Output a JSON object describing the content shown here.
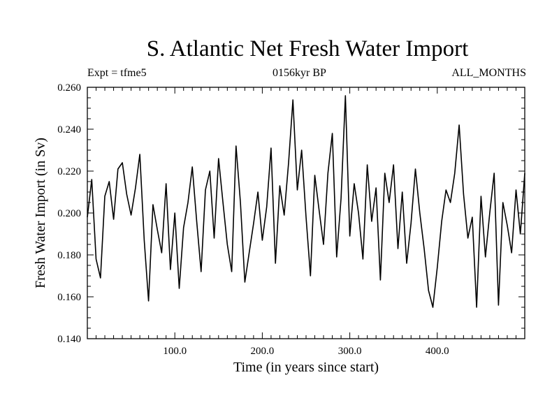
{
  "chart_data": {
    "type": "line",
    "title": "S. Atlantic Net Fresh Water Import",
    "experiment_label": "Expt = tfme5",
    "period_label": "0156kyr BP",
    "months_label": "ALL_MONTHS",
    "xlabel": "Time (in years since start)",
    "ylabel": "Fresh Water Import (in Sv)",
    "xlim": [
      0,
      500
    ],
    "ylim": [
      0.14,
      0.26
    ],
    "xticks": [
      "100.0",
      "200.0",
      "300.0",
      "400.0"
    ],
    "yticks": [
      "0.140",
      "0.160",
      "0.180",
      "0.200",
      "0.220",
      "0.240",
      "0.260"
    ],
    "grid": false,
    "series": [
      {
        "color": "#000000",
        "x": [
          0,
          5,
          10,
          15,
          20,
          25,
          30,
          35,
          40,
          45,
          50,
          55,
          60,
          65,
          70,
          75,
          80,
          85,
          90,
          95,
          100,
          105,
          110,
          115,
          120,
          125,
          130,
          135,
          140,
          145,
          150,
          155,
          160,
          165,
          170,
          175,
          180,
          185,
          190,
          195,
          200,
          205,
          210,
          215,
          220,
          225,
          230,
          235,
          240,
          245,
          250,
          255,
          260,
          265,
          270,
          275,
          280,
          285,
          290,
          295,
          300,
          305,
          310,
          315,
          320,
          325,
          330,
          335,
          340,
          345,
          350,
          355,
          360,
          365,
          370,
          375,
          380,
          385,
          390,
          395,
          400,
          405,
          410,
          415,
          420,
          425,
          430,
          435,
          440,
          445,
          450,
          455,
          460,
          465,
          470,
          475,
          480,
          485,
          490,
          495,
          500
        ],
        "y": [
          0.198,
          0.216,
          0.178,
          0.169,
          0.208,
          0.215,
          0.197,
          0.221,
          0.224,
          0.209,
          0.199,
          0.212,
          0.228,
          0.187,
          0.158,
          0.204,
          0.192,
          0.181,
          0.214,
          0.173,
          0.2,
          0.164,
          0.193,
          0.205,
          0.222,
          0.196,
          0.172,
          0.211,
          0.22,
          0.188,
          0.226,
          0.205,
          0.185,
          0.172,
          0.232,
          0.205,
          0.167,
          0.181,
          0.195,
          0.21,
          0.187,
          0.203,
          0.231,
          0.176,
          0.213,
          0.199,
          0.224,
          0.254,
          0.211,
          0.23,
          0.198,
          0.17,
          0.218,
          0.201,
          0.185,
          0.219,
          0.238,
          0.179,
          0.207,
          0.256,
          0.189,
          0.214,
          0.2,
          0.178,
          0.223,
          0.196,
          0.212,
          0.168,
          0.219,
          0.205,
          0.223,
          0.183,
          0.21,
          0.176,
          0.195,
          0.221,
          0.2,
          0.183,
          0.163,
          0.155,
          0.174,
          0.196,
          0.211,
          0.205,
          0.219,
          0.242,
          0.209,
          0.188,
          0.198,
          0.155,
          0.208,
          0.179,
          0.2,
          0.219,
          0.156,
          0.205,
          0.194,
          0.181,
          0.211,
          0.19,
          0.219
        ]
      }
    ]
  }
}
